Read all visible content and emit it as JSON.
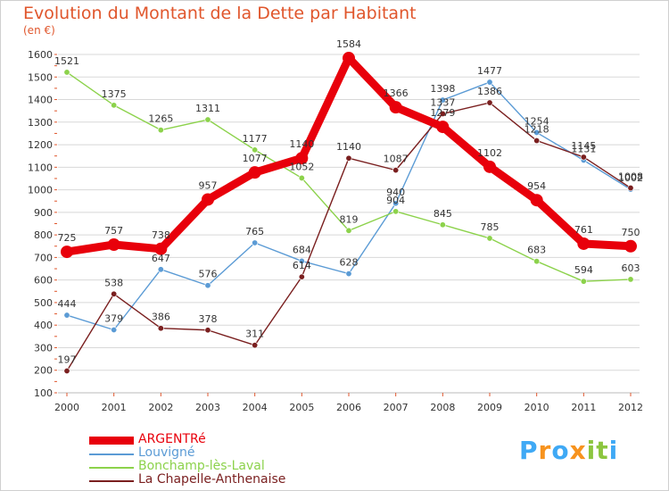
{
  "title": "Evolution du Montant de la Dette par Habitant",
  "subtitle": "(en €)",
  "brand": {
    "letters": [
      "P",
      "r",
      "o",
      "x",
      "i",
      "t",
      "i"
    ],
    "colors": [
      "#3fa9f5",
      "#f7931e",
      "#3fa9f5",
      "#f7931e",
      "#8cc63f",
      "#8cc63f",
      "#3fa9f5"
    ]
  },
  "chart_data": {
    "type": "line",
    "x": [
      2000,
      2001,
      2002,
      2003,
      2004,
      2005,
      2006,
      2007,
      2008,
      2009,
      2010,
      2011,
      2012
    ],
    "ylim": [
      100,
      1600
    ],
    "yticks": [
      100,
      200,
      300,
      400,
      500,
      600,
      700,
      800,
      900,
      1000,
      1100,
      1200,
      1300,
      1400,
      1500,
      1600
    ],
    "grid": true,
    "legend_position": "bottom-left",
    "series": [
      {
        "name": "ARGENTRé",
        "color": "#e8000b",
        "stroke_width": 9,
        "values": [
          725,
          757,
          738,
          957,
          1077,
          1140,
          1584,
          1366,
          1279,
          1102,
          954,
          761,
          750
        ]
      },
      {
        "name": "Louvigné",
        "color": "#5b9bd5",
        "stroke_width": 1.4,
        "values": [
          444,
          379,
          647,
          576,
          765,
          684,
          628,
          940,
          1398,
          1477,
          1254,
          1131,
          1002
        ]
      },
      {
        "name": "Bonchamp-lès-Laval",
        "color": "#8cd24b",
        "stroke_width": 1.4,
        "values": [
          1521,
          1375,
          1265,
          1311,
          1177,
          1052,
          819,
          904,
          845,
          785,
          683,
          594,
          603
        ]
      },
      {
        "name": "La Chapelle-Anthenaise",
        "color": "#7a1f1f",
        "stroke_width": 1.4,
        "values": [
          197,
          538,
          386,
          378,
          311,
          614,
          1140,
          1087,
          1337,
          1386,
          1218,
          1145,
          1008
        ]
      }
    ]
  }
}
